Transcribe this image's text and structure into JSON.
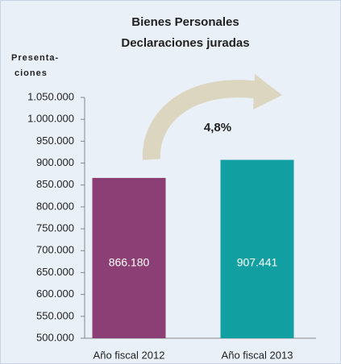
{
  "chart_data": {
    "type": "bar",
    "title": [
      "Bienes Personales",
      "Declaraciones juradas"
    ],
    "y_label": [
      "Presenta-",
      "ciones"
    ],
    "annotation": "4,8%",
    "categories": [
      "Año fiscal 2012",
      "Año fiscal 2013"
    ],
    "values": [
      866180,
      907441
    ],
    "value_labels": [
      "866.180",
      "907.441"
    ],
    "colors": [
      "#8b3f74",
      "#119fa1"
    ],
    "ylim": [
      500000,
      1050000
    ],
    "yticks": [
      {
        "value": 500000,
        "label": "500.000"
      },
      {
        "value": 550000,
        "label": "550.000"
      },
      {
        "value": 600000,
        "label": "600.000"
      },
      {
        "value": 650000,
        "label": "650.000"
      },
      {
        "value": 700000,
        "label": "700.000"
      },
      {
        "value": 750000,
        "label": "750.000"
      },
      {
        "value": 800000,
        "label": "800.000"
      },
      {
        "value": 850000,
        "label": "850.000"
      },
      {
        "value": 900000,
        "label": "900.000"
      },
      {
        "value": 950000,
        "label": "950.000"
      },
      {
        "value": 1000000,
        "label": "1.000.000"
      },
      {
        "value": 1050000,
        "label": "1.050.000"
      }
    ],
    "grid": false
  }
}
